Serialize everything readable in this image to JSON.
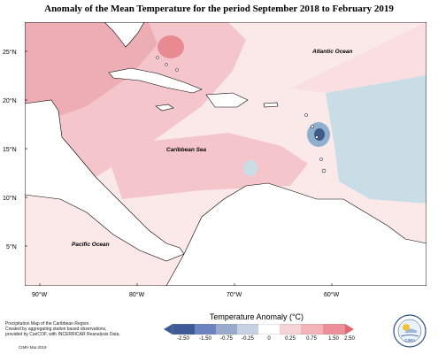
{
  "title": "Anomaly of the Mean Temperature for the period September 2018 to February 2019",
  "map": {
    "lat_labels": [
      "25°N",
      "20°N",
      "15°N",
      "10°N",
      "5°N"
    ],
    "lon_labels": [
      "90°W",
      "80°W",
      "70°W",
      "60°W"
    ],
    "place_labels": {
      "atlantic": "Atlantic Ocean",
      "caribbean": "Caribbean Sea",
      "pacific": "Pacific Ocean"
    },
    "colors": {
      "ocean_neutral": "#fbe9ea",
      "warm_light": "#f4c6cb",
      "warm_medium": "#ecaeb4",
      "warm_strong": "#e98a93",
      "cool_light": "#c9dde6",
      "cool_medium": "#8fb0cc",
      "cool_strong": "#3f5c8a",
      "land": "#ffffff",
      "coast": "#000000"
    }
  },
  "colorbar": {
    "title": "Temperature Anomaly (°C)",
    "labels": [
      "-2.50",
      "-1.50",
      "-0.75",
      "-0.25",
      "0",
      "0.25",
      "0.75",
      "1.50",
      "2.50"
    ],
    "colors": [
      "#3d5a96",
      "#6b84bf",
      "#9aaacd",
      "#c6d1e4",
      "#ffffff",
      "#f6d4d6",
      "#f2b3b9",
      "#ec8f98",
      "#e56672"
    ]
  },
  "credits": {
    "lines": [
      "Precipitation Map of the Caribbean Region.",
      "Created by aggregating station based observations,",
      "provided by CariCOF, with INCERRICAR Reanalysis Data."
    ],
    "date": "CIMH Mar.2019"
  },
  "logo_text": "CIMH"
}
